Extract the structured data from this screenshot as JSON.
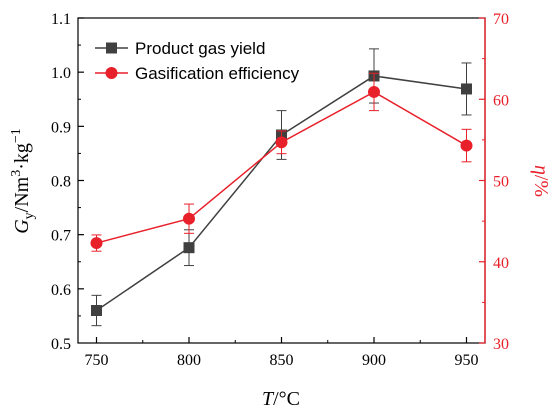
{
  "chart_data": {
    "type": "line",
    "x": [
      750,
      800,
      850,
      900,
      950
    ],
    "xlabel": "T/°C",
    "xlim": [
      740,
      960
    ],
    "xticks": [
      750,
      800,
      850,
      900,
      950
    ],
    "left_axis": {
      "label": "Gy/Nm3·kg−1",
      "ylim": [
        0.5,
        1.1
      ],
      "ticks": [
        0.5,
        0.6,
        0.7,
        0.8,
        0.9,
        1.0,
        1.1
      ],
      "tick_labels": [
        "0.5",
        "0.6",
        "0.7",
        "0.8",
        "0.9",
        "1.0",
        "1.1"
      ],
      "color": "#000000"
    },
    "right_axis": {
      "label": "η/%",
      "ylim": [
        30,
        70
      ],
      "ticks": [
        30,
        40,
        50,
        60,
        70
      ],
      "tick_labels": [
        "30",
        "40",
        "50",
        "60",
        "70"
      ],
      "color": "#e8202a"
    },
    "series": [
      {
        "name": "Product gas yield",
        "axis": "left",
        "marker": "square",
        "color": "#404040",
        "values": [
          0.56,
          0.676,
          0.884,
          0.993,
          0.969
        ],
        "errors": [
          0.028,
          0.033,
          0.045,
          0.05,
          0.048
        ]
      },
      {
        "name": "Gasification efficiency",
        "axis": "right",
        "marker": "circle",
        "color": "#e8202a",
        "values": [
          42.3,
          45.3,
          54.7,
          60.9,
          54.3
        ],
        "errors": [
          1.0,
          1.8,
          1.4,
          2.3,
          2.0
        ]
      }
    ],
    "legend_position": "top-left",
    "grid": false
  }
}
